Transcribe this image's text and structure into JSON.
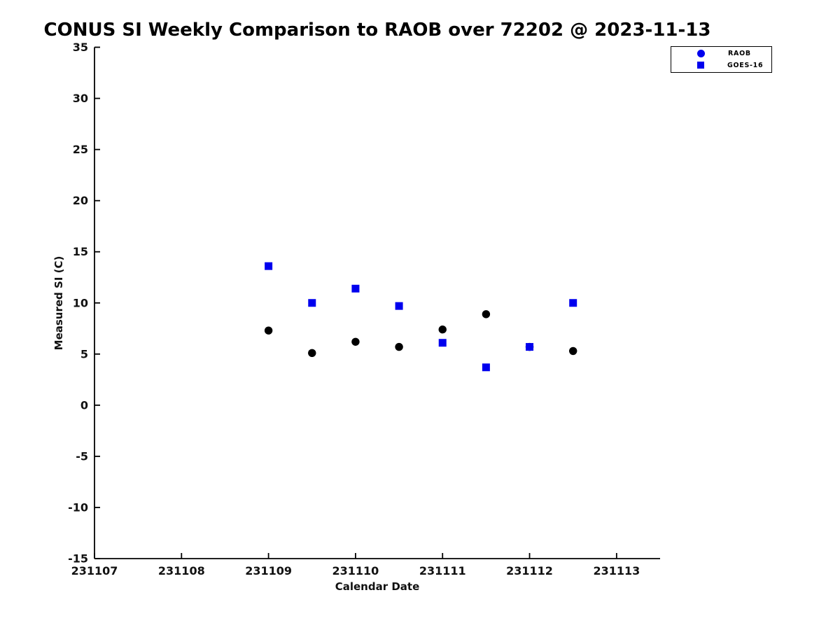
{
  "page": {
    "background_color": "#ffffff",
    "text_color": "#111111"
  },
  "chart_data": {
    "type": "scatter",
    "title": "CONUS SI Weekly Comparison to RAOB over 72202 @ 2023-11-13",
    "xlabel": "Calendar Date",
    "ylabel": "Measured SI (C)",
    "xlim": [
      231107,
      231113.5
    ],
    "ylim": [
      -15,
      35
    ],
    "xticks": [
      231107,
      231108,
      231109,
      231110,
      231111,
      231112,
      231113
    ],
    "yticks": [
      -15,
      -10,
      -5,
      0,
      5,
      10,
      15,
      20,
      25,
      30,
      35
    ],
    "grid": false,
    "axis_color": "#000000",
    "legend": {
      "position": "upper-right-outside",
      "border_color": "#000000",
      "marker_color": "#0000ee"
    },
    "series": [
      {
        "name": "RAOB",
        "marker": "circle",
        "color": "#000000",
        "x": [
          231109.0,
          231109.5,
          231110.0,
          231110.5,
          231111.0,
          231111.5,
          231112.0,
          231112.5
        ],
        "y": [
          7.3,
          5.1,
          6.2,
          5.7,
          7.4,
          8.9,
          5.7,
          5.3
        ]
      },
      {
        "name": "GOES-16",
        "marker": "square",
        "color": "#0000ee",
        "x": [
          231109.0,
          231109.5,
          231110.0,
          231110.5,
          231111.0,
          231111.5,
          231112.0,
          231112.5
        ],
        "y": [
          13.6,
          10.0,
          11.4,
          9.7,
          6.1,
          3.7,
          5.7,
          10.0
        ]
      }
    ]
  }
}
